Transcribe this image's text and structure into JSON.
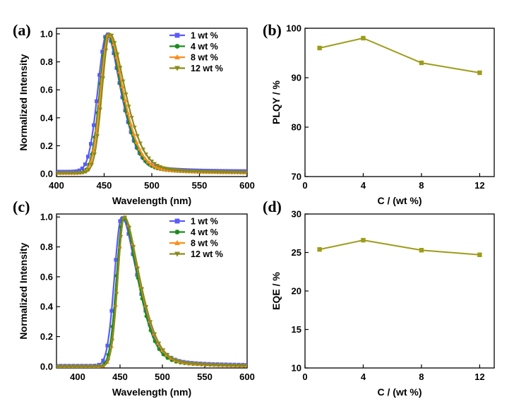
{
  "chart_data": [
    {
      "panel": "(a)",
      "type": "line",
      "xlabel": "Wavelength (nm)",
      "ylabel": "Normalized Intensity",
      "xlim": [
        400,
        600
      ],
      "ylim": [
        -0.02,
        1.04
      ],
      "xticks": [
        400,
        450,
        500,
        550,
        600
      ],
      "yticks": [
        0.0,
        0.2,
        0.4,
        0.6,
        0.8,
        1.0
      ],
      "legend": "top-right",
      "x_step": 3,
      "series": [
        {
          "name": "1 wt %",
          "color": "#5a5aff",
          "marker": "square",
          "peak": 453,
          "sigma_left": 9.5,
          "sigma_right": 17,
          "baseline": 0.015
        },
        {
          "name": "4 wt %",
          "color": "#1e8c1e",
          "marker": "circle",
          "peak": 454,
          "sigma_left": 8.5,
          "sigma_right": 17,
          "baseline": 0.005
        },
        {
          "name": "8 wt %",
          "color": "#ff8c1a",
          "marker": "triangle-up",
          "peak": 455,
          "sigma_left": 8.5,
          "sigma_right": 17.5,
          "baseline": 0.005
        },
        {
          "name": "12 wt %",
          "color": "#8a8a1e",
          "marker": "triangle-down",
          "peak": 456,
          "sigma_left": 8.0,
          "sigma_right": 19,
          "baseline": 0.005
        }
      ]
    },
    {
      "panel": "(b)",
      "type": "line",
      "xlabel": "C / (wt %)",
      "ylabel": "PLQY / %",
      "xlim": [
        0,
        13
      ],
      "ylim": [
        70,
        100
      ],
      "xticks": [
        0,
        4,
        8,
        12
      ],
      "yticks": [
        70,
        80,
        90,
        100
      ],
      "series": [
        {
          "name": "",
          "color": "#9c9c1a",
          "marker": "square",
          "x": [
            1,
            4,
            8,
            12
          ],
          "y": [
            96,
            98,
            93,
            91
          ]
        }
      ]
    },
    {
      "panel": "(c)",
      "type": "line",
      "xlabel": "Wavelength (nm)",
      "ylabel": "Normalized Intensity",
      "xlim": [
        375,
        600
      ],
      "ylim": [
        -0.01,
        1.02
      ],
      "xticks": [
        400,
        450,
        500,
        550,
        600
      ],
      "yticks": [
        0.0,
        0.2,
        0.4,
        0.6,
        0.8,
        1.0
      ],
      "legend": "top-right",
      "x_step": 5,
      "series": [
        {
          "name": "1 wt %",
          "color": "#5a5aff",
          "marker": "square",
          "peak": 452,
          "sigma_left": 8.5,
          "sigma_right": 22,
          "baseline": 0.005
        },
        {
          "name": "4 wt %",
          "color": "#1e8c1e",
          "marker": "circle",
          "peak": 454,
          "sigma_left": 8.0,
          "sigma_right": 20,
          "baseline": 0.0
        },
        {
          "name": "8 wt %",
          "color": "#ff8c1a",
          "marker": "triangle-up",
          "peak": 455,
          "sigma_left": 7.5,
          "sigma_right": 21,
          "baseline": 0.0
        },
        {
          "name": "12 wt %",
          "color": "#8a8a1e",
          "marker": "triangle-down",
          "peak": 455,
          "sigma_left": 7.5,
          "sigma_right": 21.5,
          "baseline": 0.0
        }
      ]
    },
    {
      "panel": "(d)",
      "type": "line",
      "xlabel": "C / (wt %)",
      "ylabel": "EQE / %",
      "xlim": [
        0,
        13
      ],
      "ylim": [
        10,
        30
      ],
      "xticks": [
        0,
        4,
        8,
        12
      ],
      "yticks": [
        10,
        15,
        20,
        25,
        30
      ],
      "series": [
        {
          "name": "",
          "color": "#9c9c1a",
          "marker": "square",
          "x": [
            1,
            4,
            8,
            12
          ],
          "y": [
            25.4,
            26.6,
            25.3,
            24.7
          ]
        }
      ]
    }
  ]
}
